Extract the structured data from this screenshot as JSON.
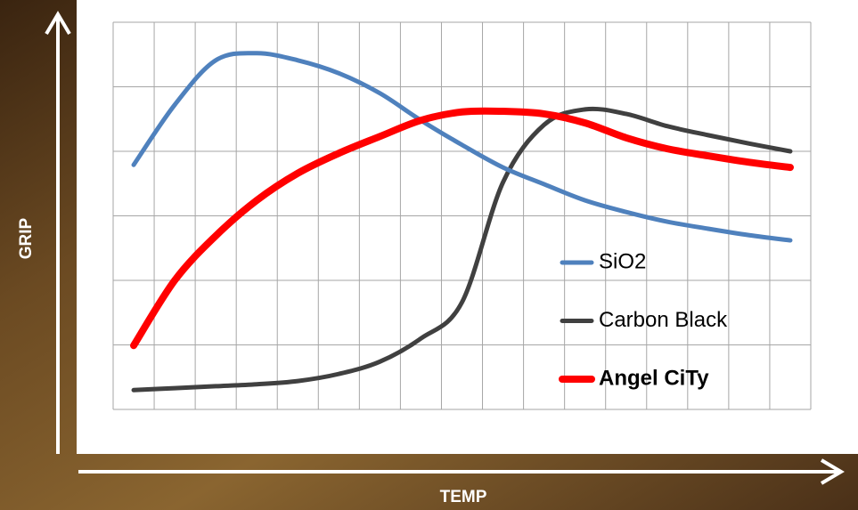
{
  "chart_data": {
    "type": "line",
    "x_label": "TEMP",
    "y_label": "GRIP",
    "x": [
      0.5,
      1.5,
      2.5,
      3.5,
      4.5,
      5.5,
      6.5,
      7.5,
      8.5,
      9.5,
      10.5,
      11.5,
      12.5,
      13.5,
      14.5,
      15.5,
      16.5
    ],
    "xlim": [
      0,
      17
    ],
    "ylim": [
      0,
      6
    ],
    "xticks": [
      0,
      1,
      2,
      3,
      4,
      5,
      6,
      7,
      8,
      9,
      10,
      11,
      12,
      13,
      14,
      15,
      16,
      17
    ],
    "yticks": [
      0,
      1,
      2,
      3,
      4,
      5,
      6
    ],
    "grid": true,
    "legend": "lower right",
    "series": [
      {
        "name": "SiO2",
        "color": "#4f81bd",
        "values": [
          3.79,
          4.72,
          5.41,
          5.52,
          5.41,
          5.21,
          4.9,
          4.48,
          4.1,
          3.75,
          3.49,
          3.24,
          3.06,
          2.91,
          2.8,
          2.7,
          2.62
        ]
      },
      {
        "name": "Carbon Black",
        "color": "#404040",
        "values": [
          0.3,
          0.33,
          0.36,
          0.39,
          0.44,
          0.55,
          0.74,
          1.1,
          1.66,
          3.52,
          4.41,
          4.65,
          4.58,
          4.39,
          4.25,
          4.12,
          4.0
        ]
      },
      {
        "name": "Angel CiTy",
        "color": "#ff0000",
        "bold": true,
        "values": [
          0.99,
          2.0,
          2.69,
          3.24,
          3.66,
          3.97,
          4.23,
          4.48,
          4.61,
          4.62,
          4.58,
          4.44,
          4.21,
          4.04,
          3.93,
          3.83,
          3.75
        ]
      }
    ]
  }
}
